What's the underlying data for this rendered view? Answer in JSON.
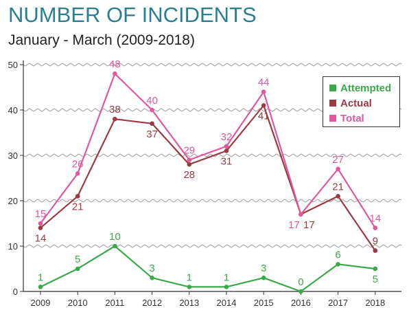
{
  "colors": {
    "title": "#2a7f93",
    "attempted": "#3aaa48",
    "actual": "#9c3a42",
    "total": "#e0589e",
    "axis": "#333333",
    "grid": "#9a9a9a"
  },
  "chart_data": {
    "type": "line",
    "title": "NUMBER OF INCIDENTS",
    "subtitle": "January - March (2009-2018)",
    "xlabel": "",
    "ylabel": "",
    "x": [
      "2009",
      "2010",
      "2011",
      "2012",
      "2013",
      "2014",
      "2015",
      "2016",
      "2017",
      "2018"
    ],
    "ylim": [
      0,
      50
    ],
    "yticks": [
      "0",
      "10",
      "20",
      "30",
      "40",
      "50"
    ],
    "grid": "horizontal wavy",
    "legend_position": "top-right",
    "series": [
      {
        "name": "Attempted",
        "color": "#3aaa48",
        "values": [
          1,
          5,
          10,
          3,
          1,
          1,
          3,
          0,
          6,
          5
        ]
      },
      {
        "name": "Actual",
        "color": "#9c3a42",
        "values": [
          14,
          21,
          38,
          37,
          28,
          31,
          41,
          17,
          21,
          9
        ]
      },
      {
        "name": "Total",
        "color": "#e0589e",
        "values": [
          15,
          26,
          48,
          40,
          29,
          32,
          44,
          17,
          27,
          14
        ]
      }
    ]
  }
}
